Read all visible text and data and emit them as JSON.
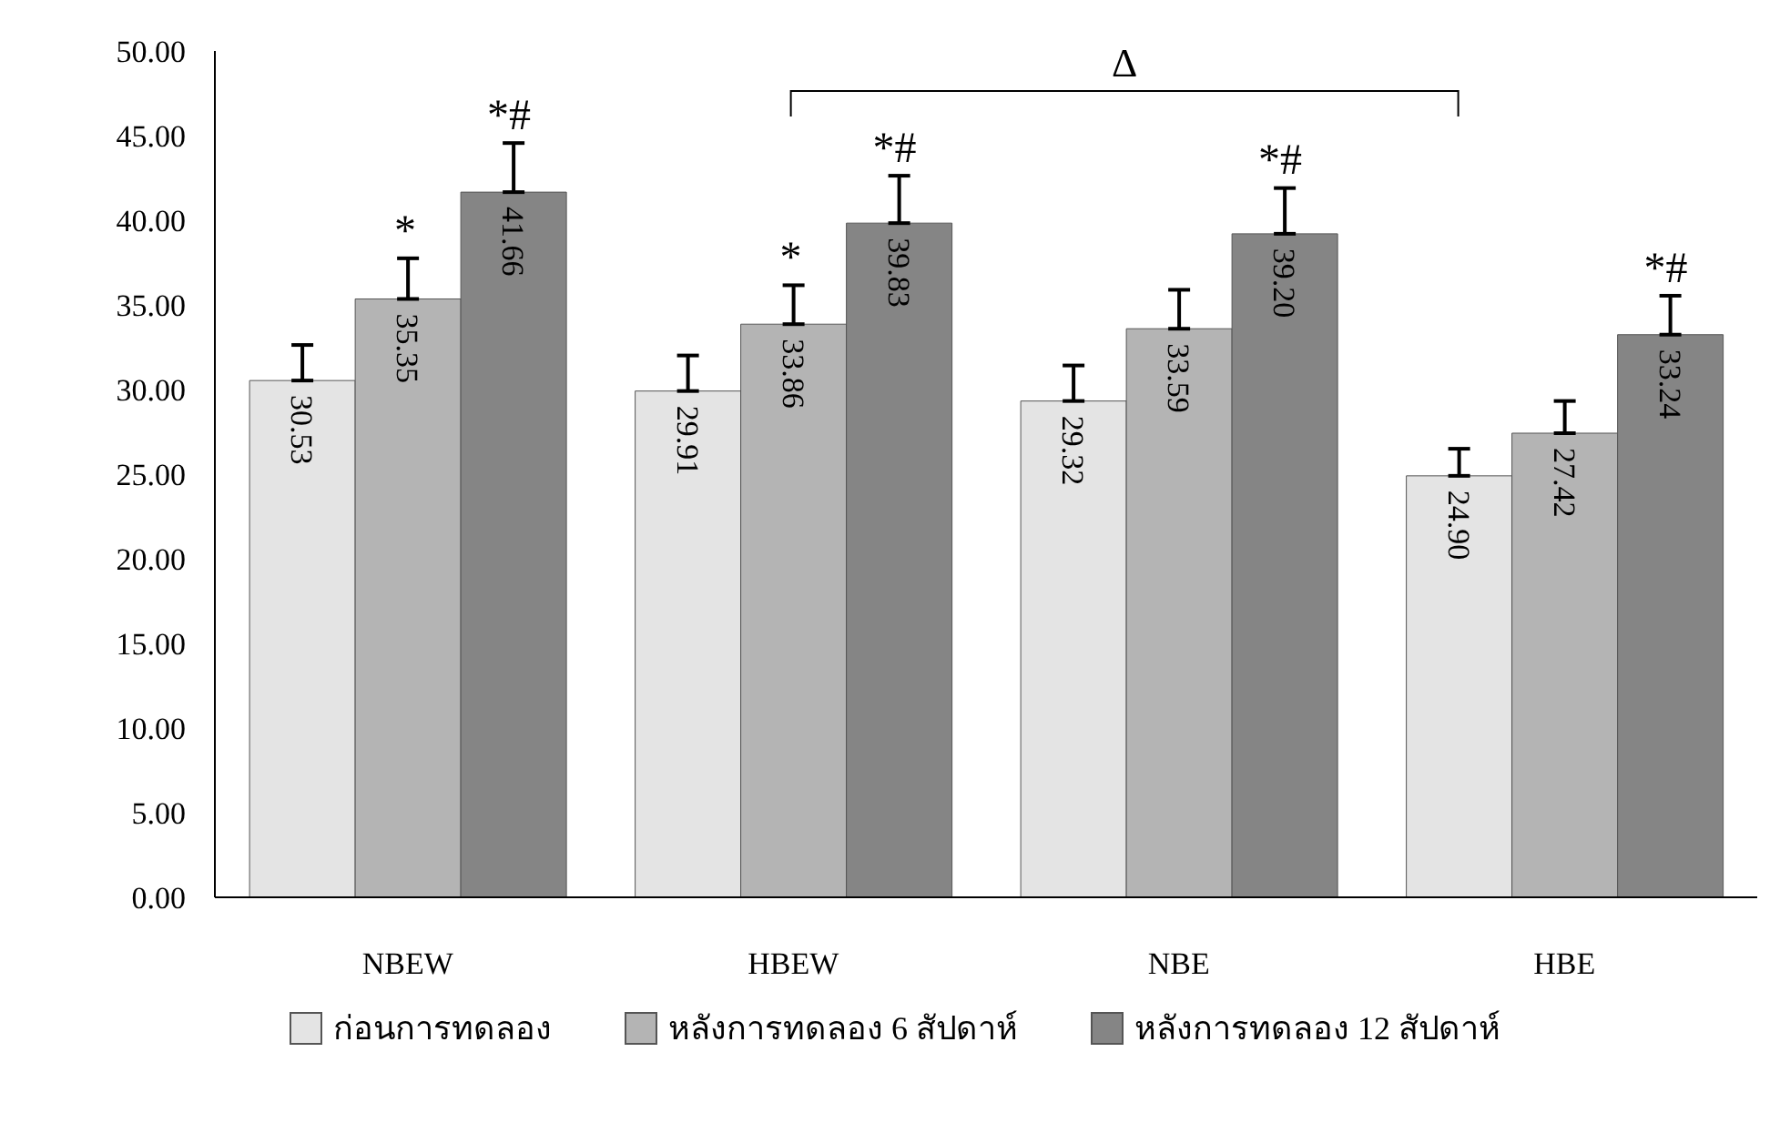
{
  "chart_data": {
    "type": "bar",
    "categories": [
      "NBEW",
      "HBEW",
      "NBE",
      "HBE"
    ],
    "series": [
      {
        "name": "ก่อนการทดลอง",
        "color": "#e4e4e4",
        "values": [
          30.53,
          29.91,
          29.32,
          24.9
        ],
        "value_labels": [
          "30.53",
          "29.91",
          "29.32",
          "24.90"
        ],
        "errors": [
          2.1,
          2.1,
          2.1,
          1.6
        ]
      },
      {
        "name": "หลังการทดลอง 6 สัปดาห์",
        "color": "#b4b4b4",
        "values": [
          35.35,
          33.86,
          33.59,
          27.42
        ],
        "value_labels": [
          "35.35",
          "33.86",
          "33.59",
          "27.42"
        ],
        "errors": [
          2.4,
          2.3,
          2.3,
          1.9
        ]
      },
      {
        "name": "หลังการทดลอง 12 สัปดาห์",
        "color": "#858585",
        "values": [
          41.66,
          39.83,
          39.2,
          33.24
        ],
        "value_labels": [
          "41.66",
          "39.83",
          "39.20",
          "33.24"
        ],
        "errors": [
          2.9,
          2.8,
          2.7,
          2.3
        ]
      }
    ],
    "ylim": [
      0,
      50
    ],
    "yticks": [
      {
        "value": 0,
        "label": "0.00"
      },
      {
        "value": 5,
        "label": "5.00"
      },
      {
        "value": 10,
        "label": "10.00"
      },
      {
        "value": 15,
        "label": "15.00"
      },
      {
        "value": 20,
        "label": "20.00"
      },
      {
        "value": 25,
        "label": "25.00"
      },
      {
        "value": 30,
        "label": "30.00"
      },
      {
        "value": 35,
        "label": "35.00"
      },
      {
        "value": 40,
        "label": "40.00"
      },
      {
        "value": 45,
        "label": "45.00"
      },
      {
        "value": 50,
        "label": "50.00"
      }
    ],
    "annotations": [
      "*",
      "*#",
      "*",
      "*#",
      "*#",
      "*#",
      "Δ"
    ],
    "grid": false,
    "legend": "bottom"
  }
}
